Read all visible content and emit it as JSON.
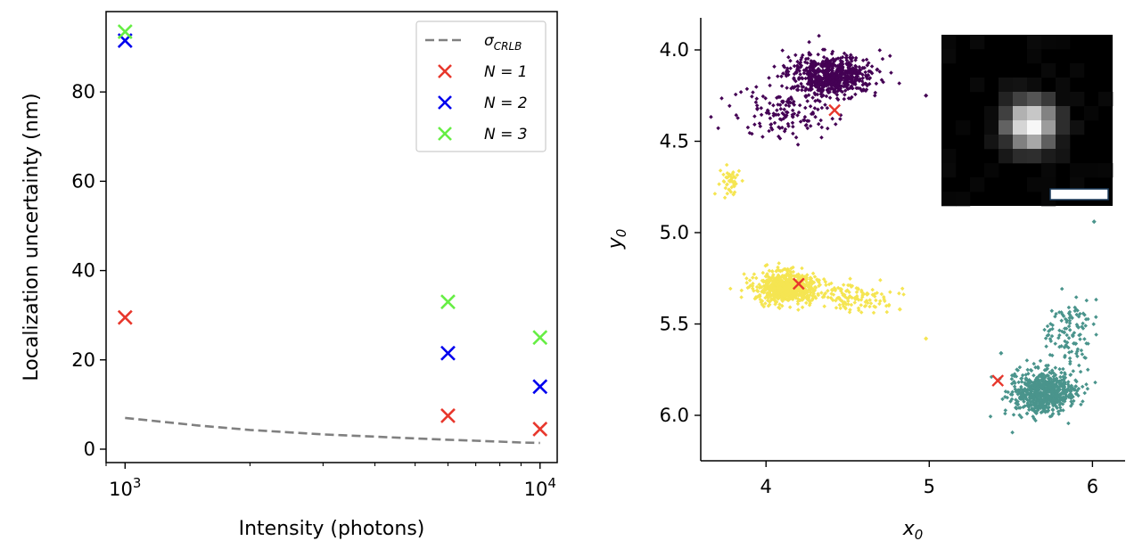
{
  "chart_data": [
    {
      "type": "scatter",
      "xlabel": "Intensity (photons)",
      "ylabel": "Localization uncertainty (nm)",
      "xscale": "log",
      "xlim": [
        900,
        11000
      ],
      "ylim": [
        -3,
        98
      ],
      "x_ticks": [
        {
          "value": 1000,
          "base": "10",
          "exp": "3"
        },
        {
          "value": 10000,
          "base": "10",
          "exp": "4"
        }
      ],
      "y_ticks": [
        0,
        20,
        40,
        60,
        80
      ],
      "legend_position": "top-right",
      "legend": [
        {
          "kind": "line",
          "label": "σ",
          "sub": "CRLB",
          "color": "#808080"
        },
        {
          "kind": "x",
          "label": "N = 1",
          "color": "#e8372c"
        },
        {
          "kind": "x",
          "label": "N = 2",
          "color": "#0000ee"
        },
        {
          "kind": "x",
          "label": "N = 3",
          "color": "#66ee44"
        }
      ],
      "crlb_line": {
        "name": "σCRLB",
        "color": "#808080",
        "x": [
          1000,
          1500,
          2000,
          3000,
          4000,
          5000,
          6000,
          7000,
          8000,
          9000,
          10000
        ],
        "y": [
          7.0,
          5.3,
          4.3,
          3.3,
          2.8,
          2.4,
          2.1,
          1.9,
          1.7,
          1.5,
          1.4
        ]
      },
      "series": [
        {
          "name": "N = 1",
          "color": "#e8372c",
          "x": [
            1000,
            6000,
            10000
          ],
          "y": [
            29.5,
            7.5,
            4.5
          ]
        },
        {
          "name": "N = 2",
          "color": "#0000ee",
          "x": [
            1000,
            6000,
            10000
          ],
          "y": [
            91.5,
            21.5,
            14
          ]
        },
        {
          "name": "N = 3",
          "color": "#66ee44",
          "x": [
            1000,
            6000,
            10000
          ],
          "y": [
            93.5,
            33,
            25
          ]
        }
      ]
    },
    {
      "type": "scatter",
      "xlabel": "x0",
      "ylabel": "y0",
      "xlim": [
        3.6,
        6.2
      ],
      "ylim": [
        6.25,
        3.82
      ],
      "y_inverted": true,
      "x_ticks": [
        "4",
        "5",
        "6"
      ],
      "y_ticks": [
        "4.0",
        "4.5",
        "5.0",
        "5.5",
        "6.0"
      ],
      "clusters": [
        {
          "color": "#440154",
          "cx": 4.4,
          "cy": 4.14,
          "sx": 0.22,
          "sy": 0.09,
          "n": 650
        },
        {
          "color": "#440154",
          "cx": 4.1,
          "cy": 4.35,
          "sx": 0.25,
          "sy": 0.12,
          "n": 140
        },
        {
          "color": "#f5e552",
          "cx": 4.12,
          "cy": 5.3,
          "sx": 0.15,
          "sy": 0.07,
          "n": 650
        },
        {
          "color": "#f5e552",
          "cx": 4.5,
          "cy": 5.35,
          "sx": 0.2,
          "sy": 0.07,
          "n": 130
        },
        {
          "color": "#f5e552",
          "cx": 3.78,
          "cy": 4.72,
          "sx": 0.06,
          "sy": 0.07,
          "n": 45
        },
        {
          "color": "#4a948c",
          "cx": 5.7,
          "cy": 5.88,
          "sx": 0.16,
          "sy": 0.1,
          "n": 650
        },
        {
          "color": "#4a948c",
          "cx": 5.85,
          "cy": 5.55,
          "sx": 0.12,
          "sy": 0.18,
          "n": 120
        }
      ],
      "outliers": [
        {
          "color": "#440154",
          "x": 4.98,
          "y": 4.25
        },
        {
          "color": "#f5e552",
          "x": 4.98,
          "y": 5.58
        },
        {
          "color": "#f5e552",
          "x": 4.82,
          "y": 5.42
        },
        {
          "color": "#4a948c",
          "x": 6.01,
          "y": 4.94
        },
        {
          "color": "#4a948c",
          "x": 5.44,
          "y": 5.66
        }
      ],
      "true_positions": {
        "color": "#e8372c",
        "x": [
          4.42,
          4.2,
          5.42
        ],
        "y": [
          4.33,
          5.28,
          5.81
        ]
      },
      "inset": {
        "type": "image",
        "description_free": true,
        "background": "#000000"
      }
    }
  ]
}
